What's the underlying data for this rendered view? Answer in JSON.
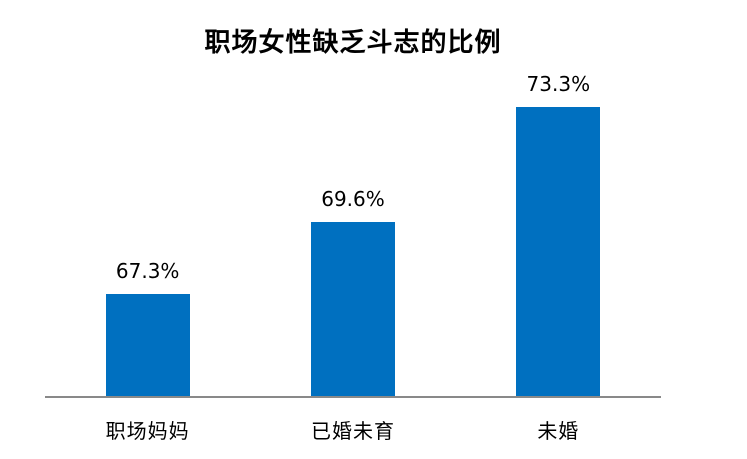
{
  "chart_data": {
    "type": "bar",
    "title": "职场女性缺乏斗志的比例",
    "categories": [
      "职场妈妈",
      "已婚未育",
      "未婚"
    ],
    "values": [
      67.3,
      69.6,
      73.3
    ],
    "value_labels": [
      "67.3%",
      "69.6%",
      "73.3%"
    ],
    "xlabel": "",
    "ylabel": "",
    "ylim": [
      64,
      74
    ],
    "grid": false,
    "legend_position": "none",
    "y_axis_visible": false,
    "bar_color": "#0070C0",
    "axis_line_color": "#898989",
    "text_color": "#000000"
  }
}
